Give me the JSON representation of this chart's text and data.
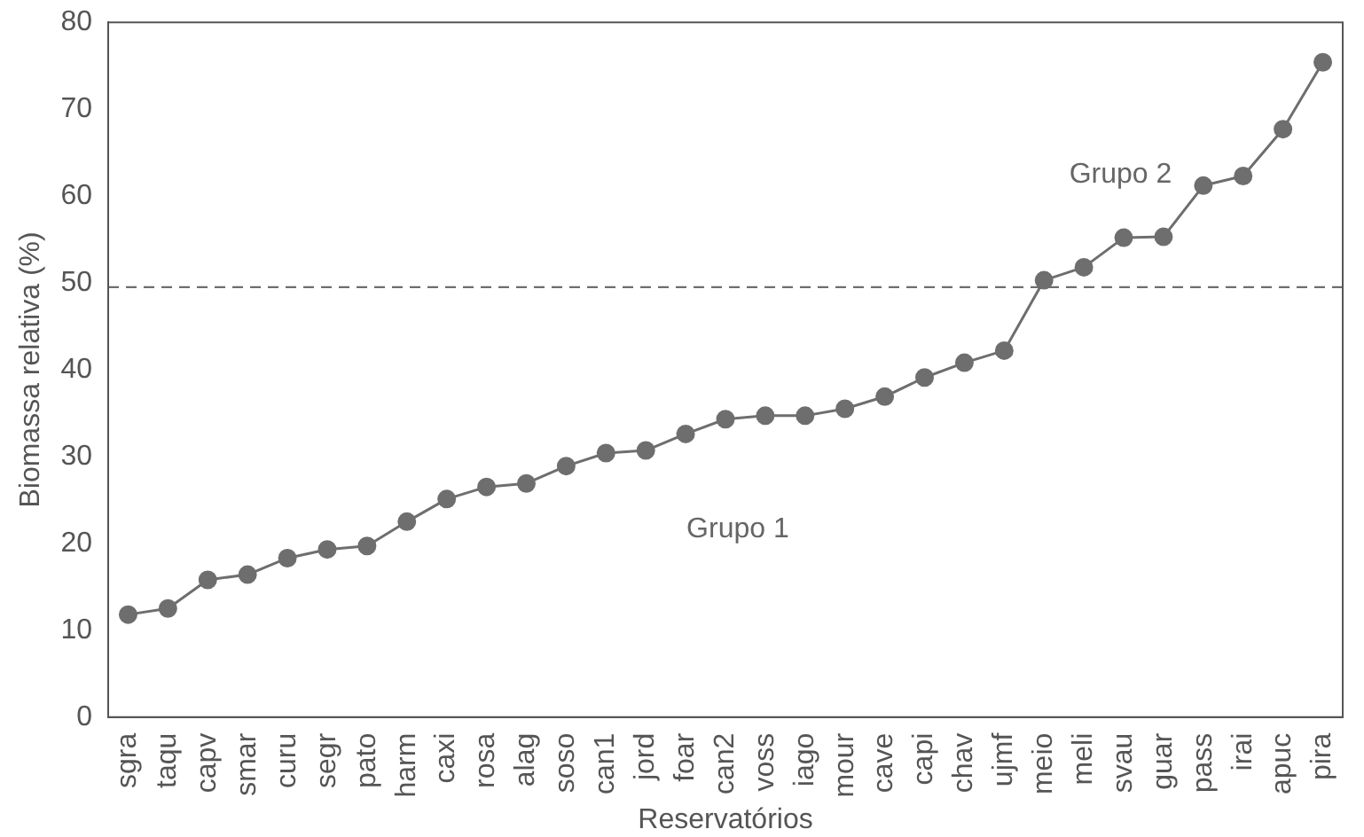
{
  "chart_data": {
    "type": "line",
    "xlabel": "Reservatórios",
    "ylabel": "Biomassa relativa (%)",
    "categories": [
      "sgra",
      "taqu",
      "capv",
      "smar",
      "curu",
      "segr",
      "pato",
      "harm",
      "caxi",
      "rosa",
      "alag",
      "soso",
      "can1",
      "jord",
      "foar",
      "can2",
      "voss",
      "iago",
      "mour",
      "cave",
      "capi",
      "chav",
      "ujmf",
      "meio",
      "meli",
      "svau",
      "guar",
      "pass",
      "irai",
      "apuc",
      "pira"
    ],
    "series": [
      {
        "color": "#6e6e6e",
        "values": [
          11.8,
          12.5,
          15.8,
          16.4,
          18.3,
          19.3,
          19.7,
          22.5,
          25.1,
          26.5,
          26.9,
          28.9,
          30.4,
          30.7,
          32.6,
          34.3,
          34.7,
          34.7,
          35.5,
          36.9,
          39.1,
          40.8,
          42.2,
          50.3,
          51.8,
          55.2,
          55.3,
          61.2,
          62.3,
          67.7,
          75.4
        ]
      }
    ],
    "ylim": [
      0,
      80
    ],
    "yticks": [
      0,
      10,
      20,
      30,
      40,
      50,
      60,
      70,
      80
    ],
    "grid": false,
    "legend": false,
    "marker": "circle",
    "line_style": "solid",
    "ref_lines": [
      {
        "axis": "y",
        "value": 49.5,
        "color": "#6e6e6e",
        "line_style": "dashed"
      }
    ],
    "annotations": [
      "Grupo 1",
      "Grupo 2"
    ]
  }
}
